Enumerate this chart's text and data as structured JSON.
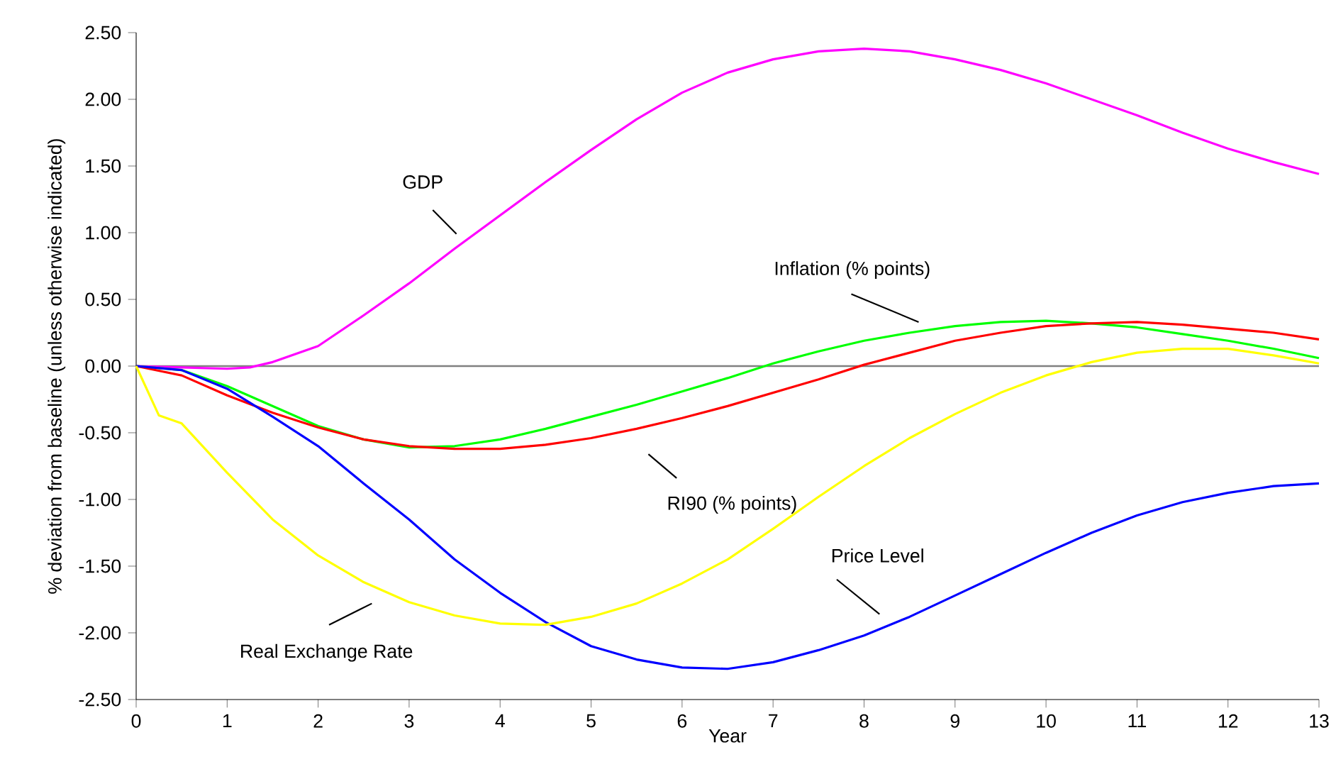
{
  "chart_data": {
    "type": "line",
    "xlabel": "Year",
    "ylabel": "% deviation from baseline (unless otherwise indicated)",
    "xlim": [
      0,
      13
    ],
    "ylim": [
      -2.5,
      2.5
    ],
    "xticks": [
      0,
      1,
      2,
      3,
      4,
      5,
      6,
      7,
      8,
      9,
      10,
      11,
      12,
      13
    ],
    "yticks": [
      {
        "value": -2.5,
        "label": "-2.50"
      },
      {
        "value": -2.0,
        "label": "-2.00"
      },
      {
        "value": -1.5,
        "label": "-1.50"
      },
      {
        "value": -1.0,
        "label": "-1.00"
      },
      {
        "value": -0.5,
        "label": "-0.50"
      },
      {
        "value": 0.0,
        "label": "0.00"
      },
      {
        "value": 0.5,
        "label": "0.50"
      },
      {
        "value": 1.0,
        "label": "1.00"
      },
      {
        "value": 1.5,
        "label": "1.50"
      },
      {
        "value": 2.0,
        "label": "2.00"
      },
      {
        "value": 2.5,
        "label": "2.50"
      }
    ],
    "marker": "none",
    "line_style": "solid",
    "ref_lines": [
      {
        "axis": "y",
        "value": 0,
        "color": "#808080"
      }
    ],
    "series": [
      {
        "name": "GDP",
        "color": "#ff00ff",
        "x": [
          0,
          0.5,
          1,
          1.25,
          1.5,
          2,
          2.5,
          3,
          3.5,
          4,
          4.5,
          5,
          5.5,
          6,
          6.5,
          7,
          7.5,
          8,
          8.5,
          9,
          9.5,
          10,
          10.5,
          11,
          11.5,
          12,
          12.5,
          13
        ],
        "values": [
          0,
          -0.01,
          -0.02,
          -0.01,
          0.03,
          0.15,
          0.38,
          0.62,
          0.88,
          1.13,
          1.38,
          1.62,
          1.85,
          2.05,
          2.2,
          2.3,
          2.36,
          2.38,
          2.36,
          2.3,
          2.22,
          2.12,
          2.0,
          1.88,
          1.75,
          1.63,
          1.53,
          1.44
        ]
      },
      {
        "name": "Inflation (% points)",
        "color": "#00ff00",
        "x": [
          0,
          0.5,
          1,
          1.5,
          2,
          2.5,
          3,
          3.5,
          4,
          4.5,
          5,
          5.5,
          6,
          6.5,
          7,
          7.5,
          8,
          8.5,
          9,
          9.5,
          10,
          10.5,
          11,
          11.5,
          12,
          12.5,
          13
        ],
        "values": [
          0,
          -0.03,
          -0.15,
          -0.3,
          -0.45,
          -0.55,
          -0.61,
          -0.6,
          -0.55,
          -0.47,
          -0.38,
          -0.29,
          -0.19,
          -0.09,
          0.02,
          0.11,
          0.19,
          0.25,
          0.3,
          0.33,
          0.34,
          0.32,
          0.29,
          0.24,
          0.19,
          0.13,
          0.06
        ]
      },
      {
        "name": "RI90 (% points)",
        "color": "#ff0000",
        "x": [
          0,
          0.5,
          1,
          1.5,
          2,
          2.5,
          3,
          3.5,
          4,
          4.5,
          5,
          5.5,
          6,
          6.5,
          7,
          7.5,
          8,
          8.5,
          9,
          9.5,
          10,
          10.5,
          11,
          11.5,
          12,
          12.5,
          13
        ],
        "values": [
          0,
          -0.07,
          -0.22,
          -0.35,
          -0.46,
          -0.55,
          -0.6,
          -0.62,
          -0.62,
          -0.59,
          -0.54,
          -0.47,
          -0.39,
          -0.3,
          -0.2,
          -0.1,
          0.01,
          0.1,
          0.19,
          0.25,
          0.3,
          0.32,
          0.33,
          0.31,
          0.28,
          0.25,
          0.2
        ]
      },
      {
        "name": "Price Level",
        "color": "#0000ff",
        "x": [
          0,
          0.5,
          1,
          1.5,
          2,
          2.5,
          3,
          3.5,
          4,
          4.5,
          5,
          5.5,
          6,
          6.5,
          7,
          7.5,
          8,
          8.5,
          9,
          9.5,
          10,
          10.5,
          11,
          11.5,
          12,
          12.5,
          13
        ],
        "values": [
          0,
          -0.03,
          -0.17,
          -0.38,
          -0.6,
          -0.88,
          -1.15,
          -1.45,
          -1.7,
          -1.92,
          -2.1,
          -2.2,
          -2.26,
          -2.27,
          -2.22,
          -2.13,
          -2.02,
          -1.88,
          -1.72,
          -1.56,
          -1.4,
          -1.25,
          -1.12,
          -1.02,
          -0.95,
          -0.9,
          -0.88
        ]
      },
      {
        "name": "Real Exchange Rate",
        "color": "#ffff00",
        "x": [
          0,
          0.25,
          0.5,
          1,
          1.5,
          2,
          2.5,
          3,
          3.5,
          4,
          4.5,
          5,
          5.5,
          6,
          6.5,
          7,
          7.5,
          8,
          8.5,
          9,
          9.5,
          10,
          10.5,
          11,
          11.5,
          12,
          12.5,
          13
        ],
        "values": [
          0,
          -0.37,
          -0.43,
          -0.8,
          -1.15,
          -1.42,
          -1.62,
          -1.77,
          -1.87,
          -1.93,
          -1.94,
          -1.88,
          -1.78,
          -1.63,
          -1.45,
          -1.22,
          -0.98,
          -0.75,
          -0.54,
          -0.36,
          -0.2,
          -0.07,
          0.03,
          0.1,
          0.13,
          0.13,
          0.08,
          0.02
        ]
      }
    ]
  }
}
